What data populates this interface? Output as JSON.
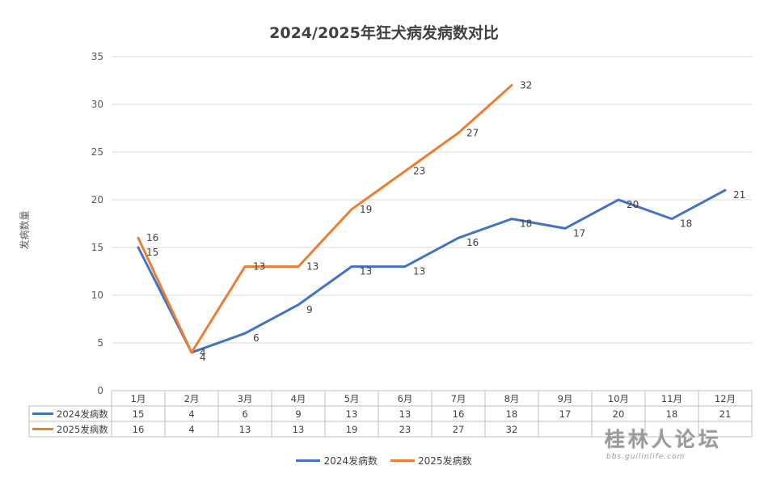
{
  "chart_data": {
    "type": "line",
    "title": "2024/2025年狂犬病发病数对比",
    "ylabel": "发病数量",
    "xlabel": "",
    "ylim": [
      0,
      35
    ],
    "yticks": [
      "0",
      "5",
      "10",
      "15",
      "20",
      "25",
      "30",
      "35"
    ],
    "categories": [
      "1月",
      "2月",
      "3月",
      "4月",
      "5月",
      "6月",
      "7月",
      "8月",
      "9月",
      "10月",
      "11月",
      "12月"
    ],
    "series": [
      {
        "name": "2024发病数",
        "color": "#4472C4",
        "values": [
          15,
          4,
          6,
          9,
          13,
          13,
          16,
          18,
          17,
          20,
          18,
          21
        ]
      },
      {
        "name": "2025发病数",
        "color": "#ED7D31",
        "values": [
          16,
          4,
          13,
          13,
          19,
          23,
          27,
          32,
          null,
          null,
          null,
          null
        ]
      }
    ],
    "grid": true,
    "data_table": true,
    "legend_position": "bottom"
  },
  "watermark": {
    "text": "桂林人论坛",
    "subtext": "bbs.guilinlife.com"
  }
}
